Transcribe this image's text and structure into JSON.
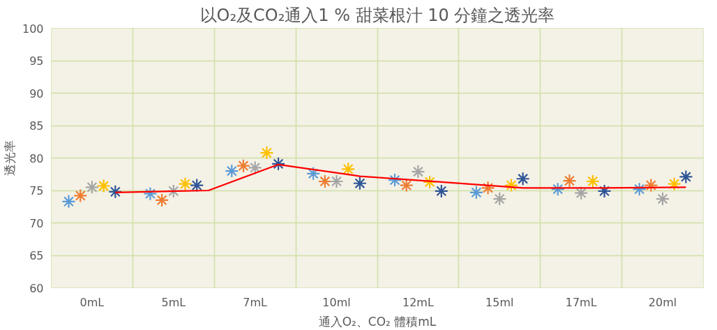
{
  "chart_data": {
    "type": "scatter",
    "title": "以O₂及CO₂通入1 % 甜菜根汁 10 分鐘之透光率",
    "xlabel": "通入O₂、CO₂ 體積mL",
    "ylabel": "透光率",
    "categories": [
      null,
      null,
      null,
      "0mL",
      null,
      null,
      null,
      null,
      null,
      null,
      "5mL",
      null,
      null,
      null,
      null,
      null,
      null,
      "7mL",
      null,
      null,
      null,
      null,
      null,
      null,
      "10ml",
      null,
      null,
      null,
      null,
      null,
      null,
      "12mL",
      null,
      null,
      null,
      null,
      null,
      null,
      "15ml",
      null,
      null,
      null,
      null,
      null,
      null,
      "17mL",
      null,
      null,
      null,
      null,
      null,
      null,
      "20ml",
      null,
      null,
      null
    ],
    "ylim": [
      60,
      100
    ],
    "yticks": [
      60,
      65,
      70,
      75,
      80,
      85,
      90,
      95,
      100
    ],
    "grid": true,
    "marker": "cross",
    "series": [
      {
        "color": "#5b9bd5",
        "values": [
          null,
          73.3,
          null,
          null,
          null,
          null,
          null,
          null,
          74.5,
          null,
          null,
          null,
          null,
          null,
          null,
          78.0,
          null,
          null,
          null,
          null,
          null,
          null,
          77.6,
          null,
          null,
          null,
          null,
          null,
          null,
          76.6,
          null,
          null,
          null,
          null,
          null,
          null,
          74.7,
          null,
          null,
          null,
          null,
          null,
          null,
          75.2,
          null,
          null,
          null,
          null,
          null,
          null,
          75.2,
          null,
          null,
          null,
          null,
          null
        ]
      },
      {
        "color": "#ed7d31",
        "values": [
          null,
          null,
          74.2,
          null,
          null,
          null,
          null,
          null,
          null,
          73.5,
          null,
          null,
          null,
          null,
          null,
          null,
          78.8,
          null,
          null,
          null,
          null,
          null,
          null,
          76.4,
          null,
          null,
          null,
          null,
          null,
          null,
          75.8,
          null,
          null,
          null,
          null,
          null,
          null,
          75.4,
          null,
          null,
          null,
          null,
          null,
          null,
          76.5,
          null,
          null,
          null,
          null,
          null,
          null,
          75.8,
          null,
          null,
          null,
          null
        ]
      },
      {
        "color": "#a5a5a5",
        "values": [
          null,
          null,
          null,
          75.5,
          null,
          null,
          null,
          null,
          null,
          null,
          74.9,
          null,
          null,
          null,
          null,
          null,
          null,
          78.5,
          null,
          null,
          null,
          null,
          null,
          null,
          76.4,
          null,
          null,
          null,
          null,
          null,
          null,
          77.9,
          null,
          null,
          null,
          null,
          null,
          null,
          73.7,
          null,
          null,
          null,
          null,
          null,
          null,
          74.6,
          null,
          null,
          null,
          null,
          null,
          null,
          73.7,
          null,
          null,
          null
        ]
      },
      {
        "color": "#ffc000",
        "values": [
          null,
          null,
          null,
          null,
          75.7,
          null,
          null,
          null,
          null,
          null,
          null,
          76.0,
          null,
          null,
          null,
          null,
          null,
          null,
          80.8,
          null,
          null,
          null,
          null,
          null,
          null,
          78.3,
          null,
          null,
          null,
          null,
          null,
          null,
          76.3,
          null,
          null,
          null,
          null,
          null,
          null,
          75.8,
          null,
          null,
          null,
          null,
          null,
          null,
          76.4,
          null,
          null,
          null,
          null,
          null,
          null,
          76.0,
          null,
          null
        ]
      },
      {
        "color": "#2f5597",
        "values": [
          null,
          null,
          null,
          null,
          null,
          74.8,
          null,
          null,
          null,
          null,
          null,
          null,
          75.8,
          null,
          null,
          null,
          null,
          null,
          null,
          79.1,
          null,
          null,
          null,
          null,
          null,
          null,
          76.1,
          null,
          null,
          null,
          null,
          null,
          null,
          74.9,
          null,
          null,
          null,
          null,
          null,
          null,
          76.8,
          null,
          null,
          null,
          null,
          null,
          null,
          74.9,
          null,
          null,
          null,
          null,
          null,
          null,
          77.1,
          null
        ]
      },
      {
        "type": "line",
        "color": "#ff0000",
        "marker": "none",
        "values": [
          null,
          null,
          null,
          null,
          null,
          74.7,
          null,
          null,
          null,
          null,
          null,
          null,
          null,
          75.0,
          null,
          null,
          null,
          null,
          null,
          79.0,
          null,
          null,
          null,
          null,
          null,
          null,
          77.2,
          null,
          null,
          null,
          null,
          null,
          null,
          76.3,
          null,
          null,
          null,
          null,
          null,
          null,
          75.4,
          null,
          null,
          null,
          null,
          null,
          null,
          75.4,
          null,
          null,
          null,
          null,
          null,
          null,
          75.5,
          null
        ]
      }
    ]
  }
}
